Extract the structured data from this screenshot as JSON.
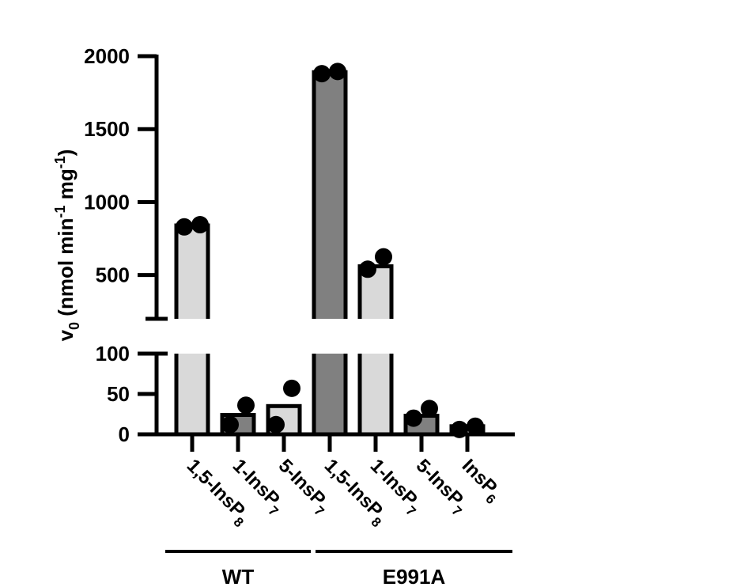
{
  "chart_data": {
    "type": "bar",
    "axis_break": {
      "lower_range": [
        0,
        100
      ],
      "upper_range": [
        200,
        2000
      ]
    },
    "ylabel": {
      "main": "v",
      "sub0": "0",
      "unit_open": " (nmol min",
      "sup1": "-1",
      "unit_mid": " mg",
      "sup2": "-1",
      "unit_close": ")"
    },
    "lower_ticks": [
      0,
      50,
      100
    ],
    "upper_ticks": [
      500,
      1000,
      1500,
      2000
    ],
    "categories": [
      {
        "main": "1,5-InsP",
        "sub": "8",
        "group": "WT",
        "shade": "light"
      },
      {
        "main": "1-InsP",
        "sub": "7",
        "group": "WT",
        "shade": "dark"
      },
      {
        "main": "5-InsP",
        "sub": "7",
        "group": "WT",
        "shade": "light"
      },
      {
        "main": "1,5-InsP",
        "sub": "8",
        "group": "E991A",
        "shade": "dark"
      },
      {
        "main": "1-InsP",
        "sub": "7",
        "group": "E991A",
        "shade": "light"
      },
      {
        "main": "5-InsP",
        "sub": "7",
        "group": "E991A",
        "shade": "dark"
      },
      {
        "main": "InsP",
        "sub": "6",
        "group": "E991A",
        "shade": "light"
      }
    ],
    "values": [
      840,
      24,
      35,
      1890,
      560,
      23,
      10
    ],
    "points": [
      [
        830,
        845
      ],
      [
        12,
        36
      ],
      [
        12,
        57
      ],
      [
        1880,
        1895
      ],
      [
        540,
        625
      ],
      [
        20,
        32
      ],
      [
        6,
        10
      ]
    ],
    "groups": [
      {
        "label": "WT",
        "from": 0,
        "to": 2
      },
      {
        "label": "E991A",
        "from": 3,
        "to": 6
      }
    ],
    "colors": {
      "light": "#d9d9d9",
      "dark": "#808080",
      "stroke": "#000000"
    }
  }
}
